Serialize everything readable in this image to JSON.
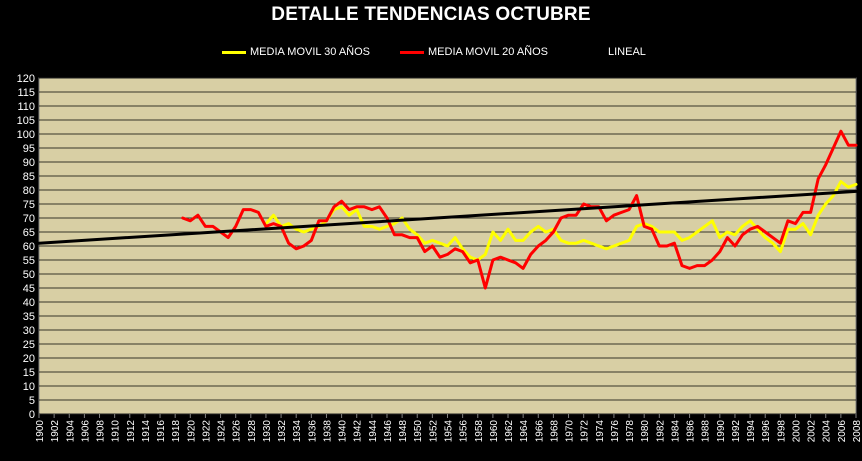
{
  "chart_data": {
    "type": "line",
    "title": "DETALLE TENDENCIAS OCTUBRE",
    "xlabel": "",
    "ylabel": "",
    "xlim": [
      1900,
      2008
    ],
    "ylim": [
      0,
      120
    ],
    "y_ticks": [
      0,
      5,
      10,
      15,
      20,
      25,
      30,
      35,
      40,
      45,
      50,
      55,
      60,
      65,
      70,
      75,
      80,
      85,
      90,
      95,
      100,
      105,
      110,
      115,
      120
    ],
    "x_ticks": [
      1900,
      1902,
      1904,
      1906,
      1908,
      1910,
      1912,
      1914,
      1916,
      1918,
      1920,
      1922,
      1924,
      1926,
      1928,
      1930,
      1932,
      1934,
      1936,
      1938,
      1940,
      1942,
      1944,
      1946,
      1948,
      1950,
      1952,
      1954,
      1956,
      1958,
      1960,
      1962,
      1964,
      1966,
      1968,
      1970,
      1972,
      1974,
      1976,
      1978,
      1980,
      1982,
      1984,
      1986,
      1988,
      1990,
      1992,
      1994,
      1996,
      1998,
      2000,
      2002,
      2004,
      2006,
      2008
    ],
    "grid": true,
    "legend_position": "top",
    "plot_background": "#d8cfa4",
    "series": [
      {
        "name": "MEDIA MOVIL 30 AÑOS",
        "color": "#ffff00",
        "points": [
          [
            1930,
            68
          ],
          [
            1931,
            71
          ],
          [
            1932,
            67
          ],
          [
            1933,
            68
          ],
          [
            1934,
            66
          ],
          [
            1935,
            65
          ],
          [
            1936,
            66
          ],
          [
            1937,
            67
          ],
          [
            1938,
            69
          ],
          [
            1939,
            73
          ],
          [
            1940,
            74
          ],
          [
            1941,
            71
          ],
          [
            1942,
            73
          ],
          [
            1943,
            67
          ],
          [
            1944,
            67
          ],
          [
            1945,
            66
          ],
          [
            1946,
            67
          ],
          [
            1947,
            68
          ],
          [
            1948,
            70
          ],
          [
            1949,
            66
          ],
          [
            1950,
            64
          ],
          [
            1951,
            61
          ],
          [
            1952,
            62
          ],
          [
            1953,
            61
          ],
          [
            1954,
            60
          ],
          [
            1955,
            63
          ],
          [
            1956,
            59
          ],
          [
            1957,
            56
          ],
          [
            1958,
            55
          ],
          [
            1959,
            57
          ],
          [
            1960,
            65
          ],
          [
            1961,
            62
          ],
          [
            1962,
            66
          ],
          [
            1963,
            62
          ],
          [
            1964,
            62
          ],
          [
            1965,
            65
          ],
          [
            1966,
            67
          ],
          [
            1967,
            65
          ],
          [
            1968,
            66
          ],
          [
            1969,
            62
          ],
          [
            1970,
            61
          ],
          [
            1971,
            61
          ],
          [
            1972,
            62
          ],
          [
            1973,
            61
          ],
          [
            1974,
            60
          ],
          [
            1975,
            59
          ],
          [
            1976,
            60
          ],
          [
            1977,
            61
          ],
          [
            1978,
            62
          ],
          [
            1979,
            67
          ],
          [
            1980,
            68
          ],
          [
            1981,
            67
          ],
          [
            1982,
            65
          ],
          [
            1983,
            65
          ],
          [
            1984,
            65
          ],
          [
            1985,
            62
          ],
          [
            1986,
            63
          ],
          [
            1987,
            65
          ],
          [
            1988,
            67
          ],
          [
            1989,
            69
          ],
          [
            1990,
            63
          ],
          [
            1991,
            65
          ],
          [
            1992,
            64
          ],
          [
            1993,
            67
          ],
          [
            1994,
            69
          ],
          [
            1995,
            66
          ],
          [
            1996,
            63
          ],
          [
            1997,
            61
          ],
          [
            1998,
            58
          ],
          [
            1999,
            66
          ],
          [
            2000,
            66
          ],
          [
            2001,
            68
          ],
          [
            2002,
            64
          ],
          [
            2003,
            71
          ],
          [
            2004,
            75
          ],
          [
            2005,
            78
          ],
          [
            2006,
            83
          ],
          [
            2007,
            81
          ],
          [
            2008,
            82
          ]
        ]
      },
      {
        "name": "MEDIA MOVIL 20 AÑOS",
        "color": "#ff0000",
        "points": [
          [
            1919,
            70
          ],
          [
            1920,
            69
          ],
          [
            1921,
            71
          ],
          [
            1922,
            67
          ],
          [
            1923,
            67
          ],
          [
            1924,
            65
          ],
          [
            1925,
            63
          ],
          [
            1926,
            67
          ],
          [
            1927,
            73
          ],
          [
            1928,
            73
          ],
          [
            1929,
            72
          ],
          [
            1930,
            67
          ],
          [
            1931,
            68
          ],
          [
            1932,
            67
          ],
          [
            1933,
            61
          ],
          [
            1934,
            59
          ],
          [
            1935,
            60
          ],
          [
            1936,
            62
          ],
          [
            1937,
            69
          ],
          [
            1938,
            69
          ],
          [
            1939,
            74
          ],
          [
            1940,
            76
          ],
          [
            1941,
            73
          ],
          [
            1942,
            74
          ],
          [
            1943,
            74
          ],
          [
            1944,
            73
          ],
          [
            1945,
            74
          ],
          [
            1946,
            70
          ],
          [
            1947,
            64
          ],
          [
            1948,
            64
          ],
          [
            1949,
            63
          ],
          [
            1950,
            63
          ],
          [
            1951,
            58
          ],
          [
            1952,
            60
          ],
          [
            1953,
            56
          ],
          [
            1954,
            57
          ],
          [
            1955,
            59
          ],
          [
            1956,
            58
          ],
          [
            1957,
            54
          ],
          [
            1958,
            55
          ],
          [
            1959,
            45
          ],
          [
            1960,
            55
          ],
          [
            1961,
            56
          ],
          [
            1962,
            55
          ],
          [
            1963,
            54
          ],
          [
            1964,
            52
          ],
          [
            1965,
            57
          ],
          [
            1966,
            60
          ],
          [
            1967,
            62
          ],
          [
            1968,
            65
          ],
          [
            1969,
            70
          ],
          [
            1970,
            71
          ],
          [
            1971,
            71
          ],
          [
            1972,
            75
          ],
          [
            1973,
            74
          ],
          [
            1974,
            74
          ],
          [
            1975,
            69
          ],
          [
            1976,
            71
          ],
          [
            1977,
            72
          ],
          [
            1978,
            73
          ],
          [
            1979,
            78
          ],
          [
            1980,
            67
          ],
          [
            1981,
            66
          ],
          [
            1982,
            60
          ],
          [
            1983,
            60
          ],
          [
            1984,
            61
          ],
          [
            1985,
            53
          ],
          [
            1986,
            52
          ],
          [
            1987,
            53
          ],
          [
            1988,
            53
          ],
          [
            1989,
            55
          ],
          [
            1990,
            58
          ],
          [
            1991,
            63
          ],
          [
            1992,
            60
          ],
          [
            1993,
            64
          ],
          [
            1994,
            66
          ],
          [
            1995,
            67
          ],
          [
            1996,
            65
          ],
          [
            1997,
            63
          ],
          [
            1998,
            61
          ],
          [
            1999,
            69
          ],
          [
            2000,
            68
          ],
          [
            2001,
            72
          ],
          [
            2002,
            72
          ],
          [
            2003,
            84
          ],
          [
            2004,
            89
          ],
          [
            2005,
            95
          ],
          [
            2006,
            101
          ],
          [
            2007,
            96
          ],
          [
            2008,
            96
          ]
        ]
      },
      {
        "name": "LINEAL",
        "color": "#000000",
        "points": [
          [
            1900,
            61
          ],
          [
            2008,
            79.5
          ]
        ]
      }
    ]
  }
}
